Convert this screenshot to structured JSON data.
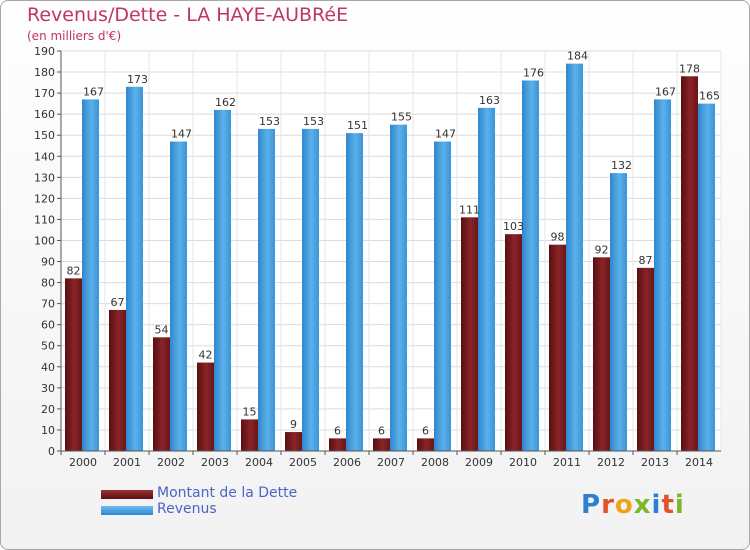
{
  "title": "Revenus/Dette - LA HAYE-AUBRéE",
  "subtitle": "(en milliers d'€)",
  "logo": "Proxiti",
  "colors": {
    "dette": "#7a1a1c",
    "revenus": "#3a94d8",
    "title": "#c0346c",
    "legend_text": "#4a64c8"
  },
  "legend": [
    {
      "label": "Montant de la Dette",
      "color": "#7a1a1c"
    },
    {
      "label": "Revenus",
      "color": "#3a94d8"
    }
  ],
  "chart_data": {
    "type": "bar",
    "title": "Revenus/Dette - LA HAYE-AUBRéE",
    "ylabel": "(en milliers d'€)",
    "categories": [
      "2000",
      "2001",
      "2002",
      "2003",
      "2004",
      "2005",
      "2006",
      "2007",
      "2008",
      "2009",
      "2010",
      "2011",
      "2012",
      "2013",
      "2014"
    ],
    "series": [
      {
        "name": "Montant de la Dette",
        "values": [
          82,
          67,
          54,
          42,
          15,
          9,
          6,
          6,
          6,
          111,
          103,
          98,
          92,
          87,
          178
        ]
      },
      {
        "name": "Revenus",
        "values": [
          167,
          173,
          147,
          162,
          153,
          153,
          151,
          155,
          147,
          163,
          176,
          184,
          132,
          167,
          165
        ]
      }
    ],
    "ylim": [
      0,
      190
    ],
    "yticks": [
      0,
      10,
      20,
      30,
      40,
      50,
      60,
      70,
      80,
      90,
      100,
      110,
      120,
      130,
      140,
      150,
      160,
      170,
      180,
      190
    ],
    "grid": true,
    "legend_position": "bottom-left"
  }
}
